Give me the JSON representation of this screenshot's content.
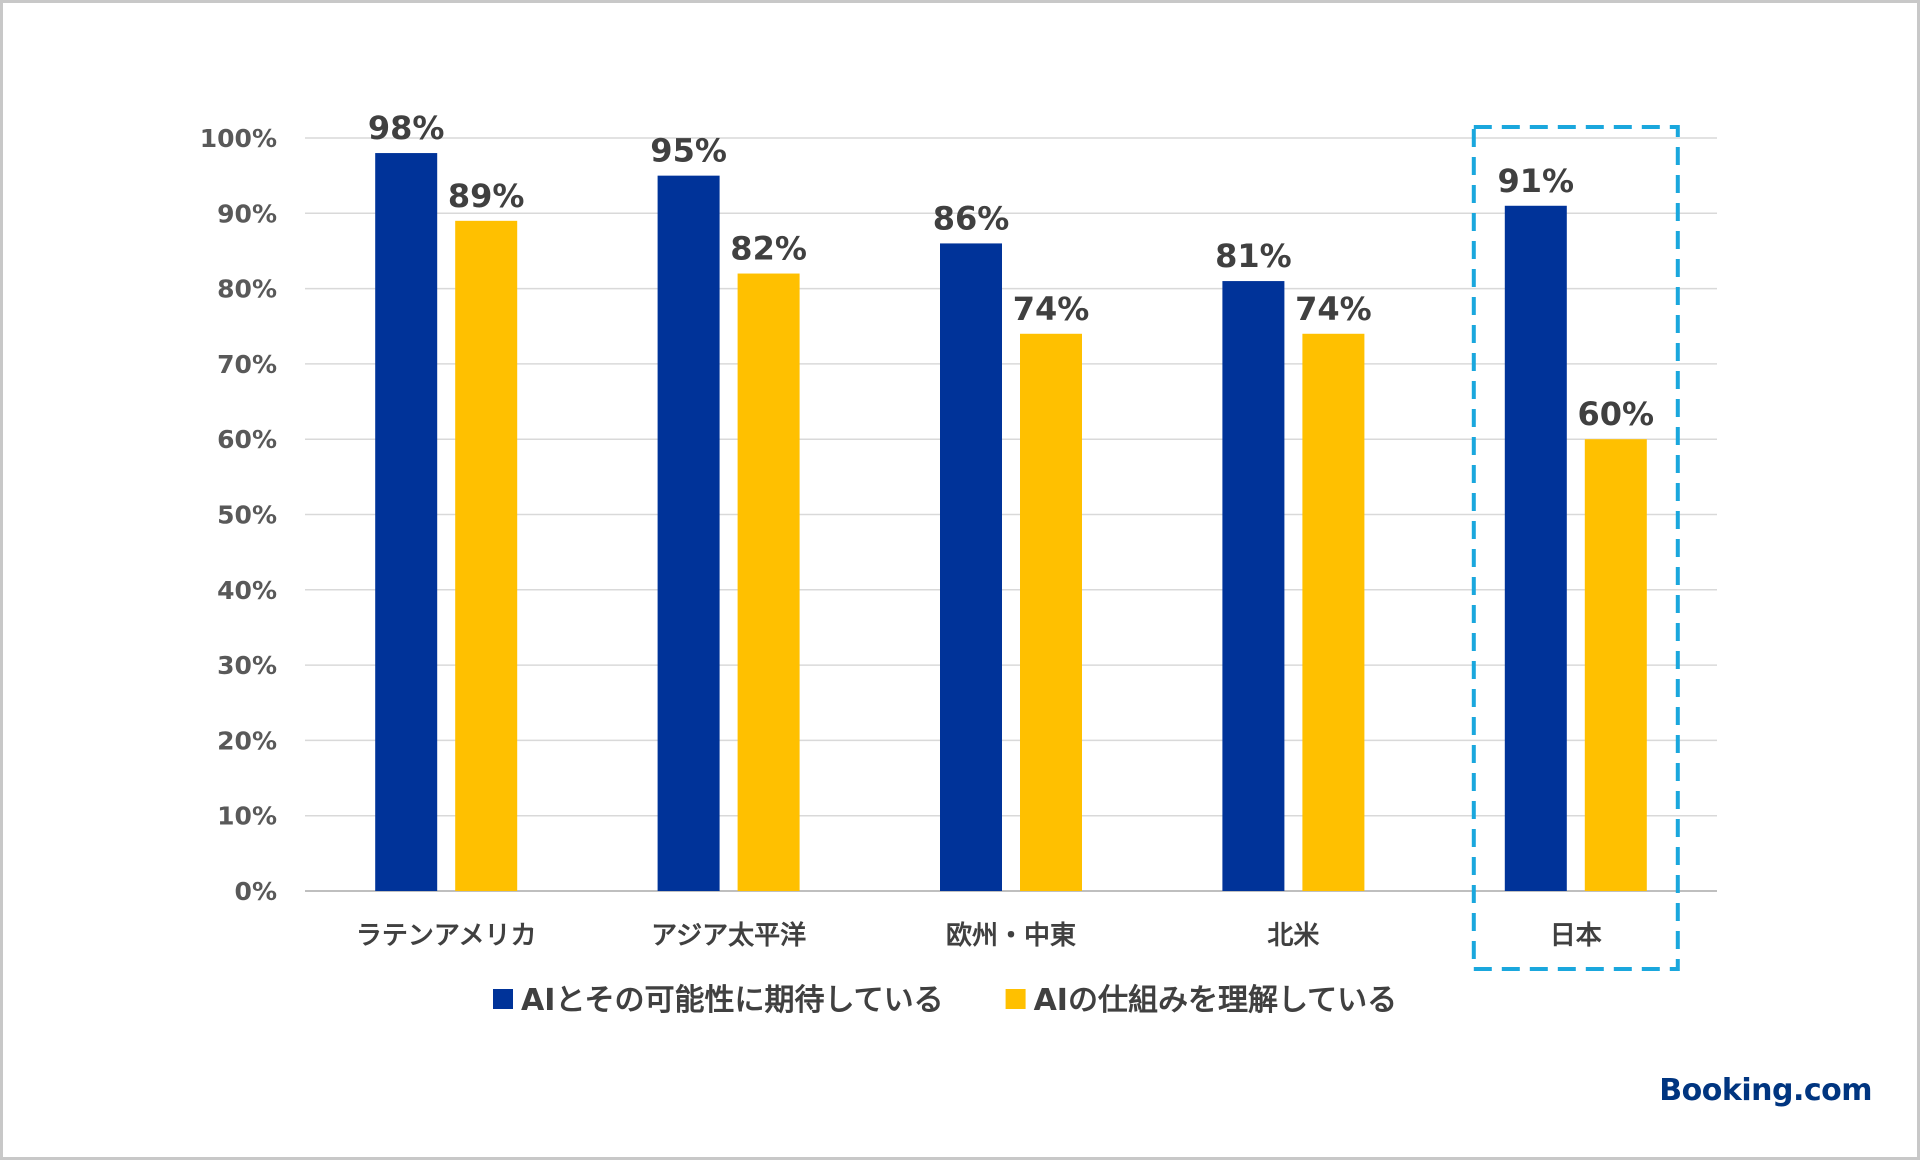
{
  "brand": {
    "name": "Booking.com",
    "color": "#003580"
  },
  "chart_data": {
    "type": "bar",
    "title": "",
    "xlabel": "",
    "ylabel": "",
    "ylim": [
      0,
      100
    ],
    "yticks": [
      0,
      10,
      20,
      30,
      40,
      50,
      60,
      70,
      80,
      90,
      100
    ],
    "ytick_labels": [
      "0%",
      "10%",
      "20%",
      "30%",
      "40%",
      "50%",
      "60%",
      "70%",
      "80%",
      "90%",
      "100%"
    ],
    "grid": true,
    "legend_position": "bottom",
    "categories": [
      "ラテンアメリカ",
      "アジア太平洋",
      "欧州・中東",
      "北米",
      "日本"
    ],
    "highlight_category": "日本",
    "highlight_color": "#1aa7dd",
    "series": [
      {
        "name": "AIとその可能性に期待している",
        "color": "#003399",
        "values": [
          98,
          95,
          86,
          81,
          91
        ],
        "labels": [
          "98%",
          "95%",
          "86%",
          "81%",
          "91%"
        ]
      },
      {
        "name": "AIの仕組みを理解している",
        "color": "#ffc000",
        "values": [
          89,
          82,
          74,
          74,
          60
        ],
        "labels": [
          "89%",
          "82%",
          "74%",
          "74%",
          "60%"
        ]
      }
    ]
  }
}
